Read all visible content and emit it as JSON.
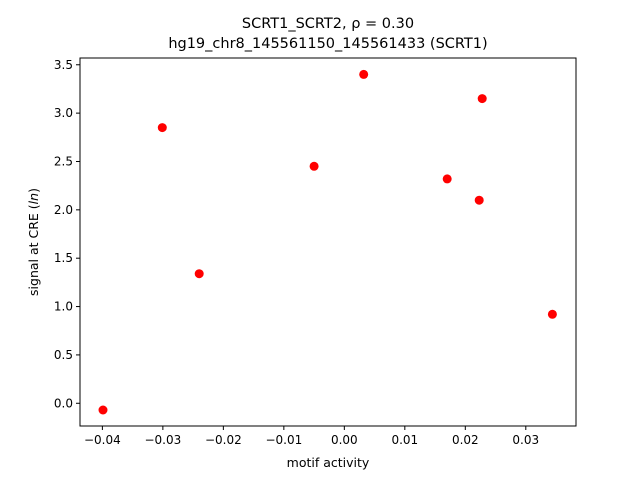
{
  "colors": {
    "point": "#ff0000",
    "axis": "#000000",
    "background": "#ffffff"
  },
  "chart_data": {
    "type": "scatter",
    "title_line1": "SCRT1_SCRT2, ρ = 0.30",
    "title_line2": "hg19_chr8_145561150_145561433 (SCRT1)",
    "xlabel": "motif activity",
    "ylabel": "signal at CRE (ln)",
    "xlim": [
      -0.0437,
      0.0383
    ],
    "ylim": [
      -0.235,
      3.57
    ],
    "xticks": [
      -0.04,
      -0.03,
      -0.02,
      -0.01,
      0.0,
      0.01,
      0.02,
      0.03
    ],
    "xtick_labels": [
      "−0.04",
      "−0.03",
      "−0.02",
      "−0.01",
      "0.00",
      "0.01",
      "0.02",
      "0.03"
    ],
    "yticks": [
      0.0,
      0.5,
      1.0,
      1.5,
      2.0,
      2.5,
      3.0,
      3.5
    ],
    "ytick_labels": [
      "0.0",
      "0.5",
      "1.0",
      "1.5",
      "2.0",
      "2.5",
      "3.0",
      "3.5"
    ],
    "grid": false,
    "series": [
      {
        "x": [
          -0.0399,
          -0.0301,
          -0.024,
          -0.005,
          0.0032,
          0.017,
          0.0223,
          0.0228,
          0.0344
        ],
        "y": [
          -0.07,
          2.85,
          1.34,
          2.45,
          3.4,
          2.32,
          2.1,
          3.15,
          0.92
        ]
      }
    ]
  }
}
